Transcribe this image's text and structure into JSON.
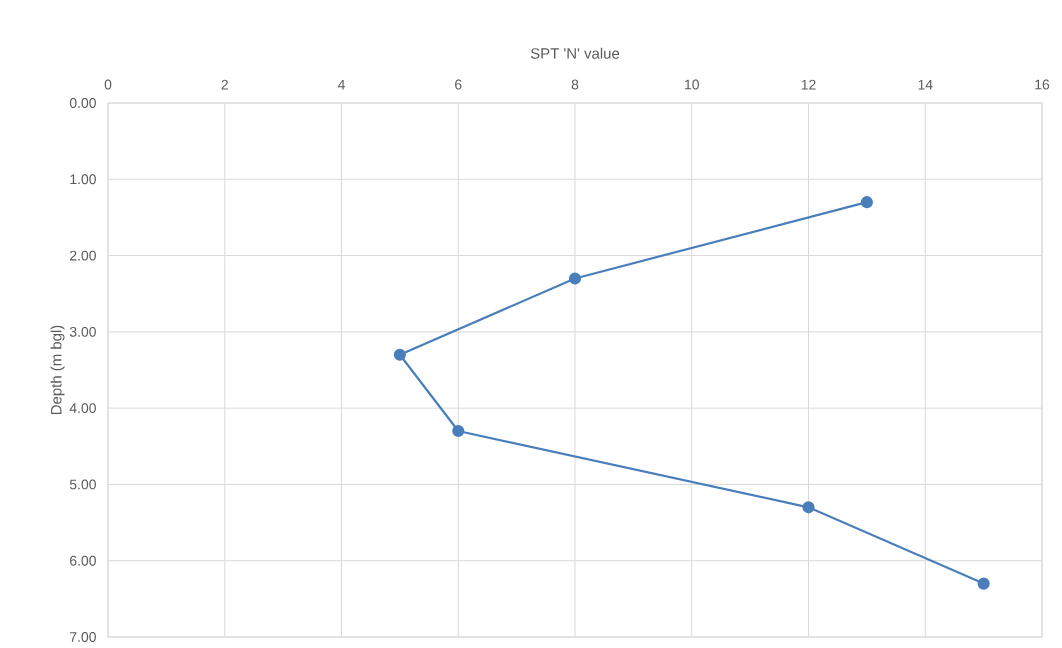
{
  "chart_data": {
    "type": "line",
    "xlabel": "SPT 'N' value",
    "ylabel": "Depth (m bgl)",
    "series": [
      {
        "color": "#4a7ebb",
        "x": [
          13,
          8,
          5,
          6,
          12,
          15
        ],
        "values": [
          1.3,
          2.3,
          3.3,
          4.3,
          5.3,
          6.3
        ]
      }
    ],
    "xlim": [
      0,
      16
    ],
    "xticks": [
      0,
      2,
      4,
      6,
      8,
      10,
      12,
      14,
      16
    ],
    "ylim": [
      7,
      0
    ],
    "yticks": [
      {
        "value": 0,
        "label": "0.00"
      },
      {
        "value": 1,
        "label": "1.00"
      },
      {
        "value": 2,
        "label": "2.00"
      },
      {
        "value": 3,
        "label": "3.00"
      },
      {
        "value": 4,
        "label": "4.00"
      },
      {
        "value": 5,
        "label": "5.00"
      },
      {
        "value": 6,
        "label": "6.00"
      },
      {
        "value": 7,
        "label": "7.00"
      }
    ],
    "grid": true,
    "marker": "circle",
    "line_style": "solid"
  }
}
